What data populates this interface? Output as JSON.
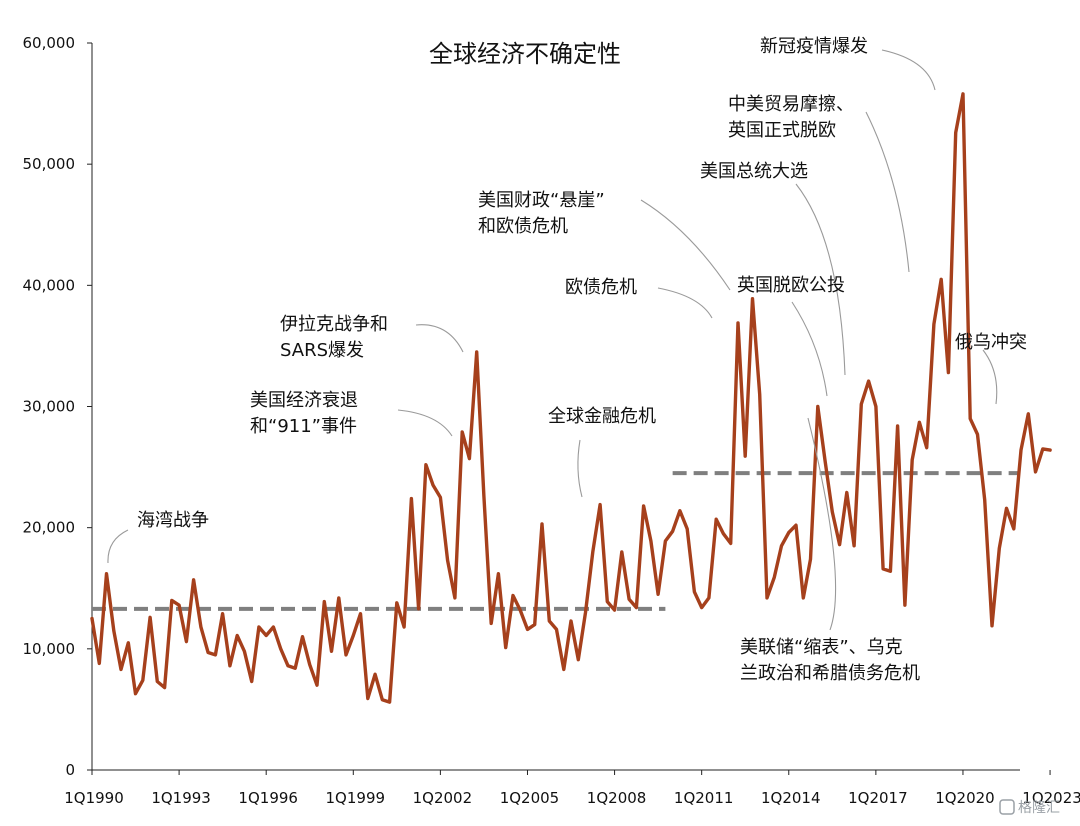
{
  "chart_data": {
    "type": "line",
    "title": "全球经济不确定性",
    "xlabel": "",
    "ylabel": "",
    "ylim": [
      0,
      60000
    ],
    "yticks": [
      "0",
      "10,000",
      "20,000",
      "30,000",
      "40,000",
      "50,000",
      "60,000"
    ],
    "xticks": [
      "1Q1990",
      "1Q1993",
      "1Q1996",
      "1Q1999",
      "1Q2002",
      "1Q2005",
      "1Q2008",
      "1Q2011",
      "1Q2014",
      "1Q2017",
      "1Q2020",
      "1Q2023"
    ],
    "start_quarter": "1Q1990",
    "line_color": "#a6401c",
    "avg_color": "#7f7f7f",
    "series": [
      {
        "values": [
          12500,
          8800,
          16200,
          11500,
          8300,
          10500,
          6300,
          7400,
          12600,
          7300,
          6800,
          14000,
          13600,
          10600,
          15700,
          11800,
          9700,
          9500,
          12900,
          8600,
          11100,
          9800,
          7300,
          11800,
          11100,
          11800,
          10000,
          8600,
          8400,
          11000,
          8700,
          7000,
          13900,
          9800,
          14200,
          9500,
          11100,
          12900,
          5900,
          7900,
          5800,
          5600,
          13800,
          11800,
          22400,
          13300,
          25200,
          23500,
          22500,
          17300,
          14200,
          27900,
          25700,
          34500,
          22600,
          12100,
          16200,
          10100,
          14400,
          13200,
          11600,
          12000,
          20300,
          12300,
          11600,
          8300,
          12300,
          9100,
          13000,
          18000,
          21900,
          13900,
          13200,
          18000,
          14100,
          13400,
          21800,
          18900,
          14500,
          18900,
          19700,
          21400,
          19900,
          14700,
          13400,
          14200,
          20700,
          19500,
          18700,
          36900,
          25900,
          38900,
          31000,
          14200,
          15900,
          18500,
          19600,
          20200,
          14200,
          17400,
          30000,
          25500,
          21300,
          18600,
          22900,
          18500,
          30200,
          32100,
          30000,
          16600,
          16400,
          28400,
          13600,
          25600,
          28700,
          26600,
          36800,
          40500,
          32800,
          52600,
          55800,
          29000,
          27700,
          22300,
          11900,
          18300,
          21600,
          19900,
          26400,
          29400,
          24600,
          26500,
          26400
        ]
      }
    ],
    "averages": [
      {
        "from": "1Q1990",
        "to": "4Q2009",
        "value": 13300
      },
      {
        "from": "1Q2010",
        "to": "1Q2023",
        "value": 24500
      }
    ],
    "annotations": [
      {
        "text": [
          "海湾战争"
        ],
        "quarter": 2
      },
      {
        "text": [
          "美国经济衰退",
          "和“911”事件"
        ],
        "quarter": 51
      },
      {
        "text": [
          "伊拉克战争和",
          "SARS爆发"
        ],
        "quarter": 53
      },
      {
        "text": [
          "全球金融危机"
        ],
        "quarter": 70
      },
      {
        "text": [
          "欧债危机"
        ],
        "quarter": 89
      },
      {
        "text": [
          "美国财政“悬崖”",
          "和欧债危机"
        ],
        "quarter": 91
      },
      {
        "text": [
          "美国总统大选"
        ],
        "quarter": 107
      },
      {
        "text": [
          "英国脱欧公投"
        ],
        "quarter": 106
      },
      {
        "text": [
          "中美贸易摩擦、",
          "英国正式脱欧"
        ],
        "quarter": 117
      },
      {
        "text": [
          "新冠疫情爆发"
        ],
        "quarter": 120
      },
      {
        "text": [
          "俄乌冲突"
        ],
        "quarter": 129
      },
      {
        "text": [
          "美联储“缩表”、乌克",
          "兰政治和希腊债务危机"
        ],
        "quarter": 100
      }
    ]
  },
  "watermark": "格隆汇"
}
